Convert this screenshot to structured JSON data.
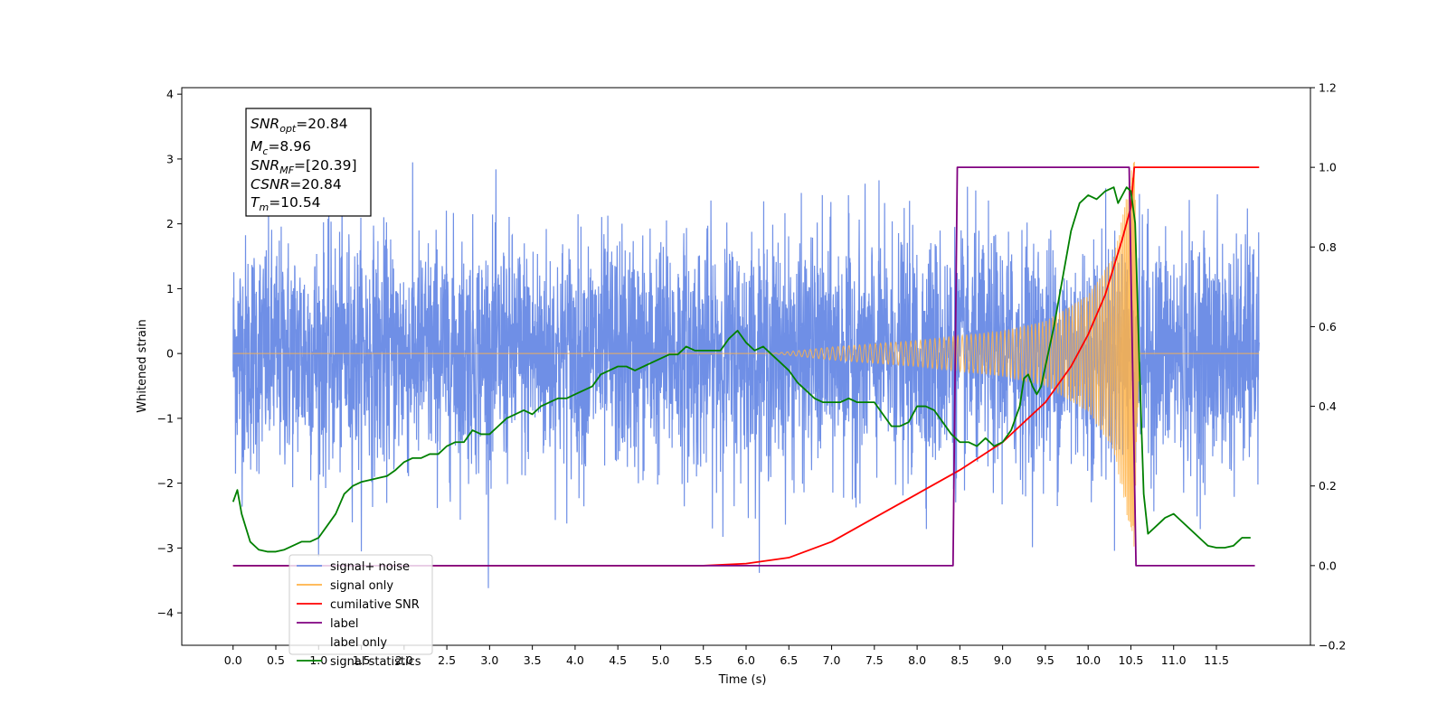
{
  "chart_data": {
    "type": "line",
    "xlabel": "Time (s)",
    "ylabel": "Whitened strain",
    "xlim": [
      -0.6,
      12.6
    ],
    "ylim_left": [
      -4.5,
      4.1
    ],
    "ylim_right": [
      -0.2,
      1.2
    ],
    "x_ticks": [
      "0.0",
      "0.5",
      "1.0",
      "1.5",
      "2.0",
      "2.5",
      "3.0",
      "3.5",
      "4.0",
      "4.5",
      "5.0",
      "5.5",
      "6.0",
      "6.5",
      "7.0",
      "7.5",
      "8.0",
      "8.5",
      "9.0",
      "9.5",
      "10.0",
      "10.5",
      "11.0",
      "11.5"
    ],
    "y_ticks_left": [
      "−4",
      "−3",
      "−2",
      "−1",
      "0",
      "1",
      "2",
      "3",
      "4"
    ],
    "y_ticks_right": [
      "−0.2",
      "0.0",
      "0.2",
      "0.4",
      "0.6",
      "0.8",
      "1.0",
      "1.2"
    ],
    "legend_position": "lower-left",
    "grid": false,
    "series": [
      {
        "name": "signal+ noise",
        "color": "#6f8fe6",
        "axis": "left",
        "style": "dense-noise",
        "x_range": [
          0.0,
          12.0
        ],
        "std": 0.9
      },
      {
        "name": "signal only",
        "color": "#ffb347",
        "axis": "left",
        "style": "chirp",
        "merger_time": 10.54,
        "envelope": {
          "t": [
            6.3,
            7.0,
            8.0,
            9.0,
            9.5,
            10.0,
            10.3,
            10.5,
            10.54,
            10.6
          ],
          "amp": [
            0.0,
            0.1,
            0.2,
            0.35,
            0.5,
            0.9,
            1.5,
            2.8,
            3.0,
            0.0
          ]
        }
      },
      {
        "name": "cumilative SNR",
        "color": "#ff0000",
        "axis": "right",
        "x": [
          0.0,
          5.5,
          6.0,
          6.5,
          7.0,
          7.5,
          8.0,
          8.5,
          9.0,
          9.5,
          9.8,
          10.0,
          10.2,
          10.4,
          10.5,
          10.54,
          12.0
        ],
        "y": [
          0.0,
          0.0,
          0.005,
          0.02,
          0.06,
          0.12,
          0.18,
          0.24,
          0.31,
          0.41,
          0.5,
          0.58,
          0.68,
          0.82,
          0.9,
          1.0,
          1.0
        ]
      },
      {
        "name": "label",
        "color": "#800080",
        "axis": "right",
        "x": [
          0.0,
          8.42,
          8.47,
          10.48,
          10.56,
          11.95
        ],
        "y": [
          0.0,
          0.0,
          1.0,
          1.0,
          0.0,
          0.0
        ]
      },
      {
        "name": "label only",
        "color": "#ffffff",
        "axis": "right",
        "x": [],
        "y": []
      },
      {
        "name": "signal statistics",
        "color": "#008000",
        "axis": "right",
        "x": [
          0.0,
          0.05,
          0.1,
          0.2,
          0.3,
          0.4,
          0.5,
          0.6,
          0.7,
          0.8,
          0.9,
          1.0,
          1.1,
          1.2,
          1.3,
          1.4,
          1.5,
          1.6,
          1.7,
          1.8,
          1.9,
          2.0,
          2.1,
          2.2,
          2.3,
          2.4,
          2.5,
          2.6,
          2.7,
          2.8,
          2.9,
          3.0,
          3.1,
          3.2,
          3.3,
          3.4,
          3.5,
          3.6,
          3.7,
          3.8,
          3.9,
          4.0,
          4.1,
          4.2,
          4.3,
          4.4,
          4.5,
          4.6,
          4.7,
          4.8,
          4.9,
          5.0,
          5.1,
          5.2,
          5.3,
          5.4,
          5.5,
          5.6,
          5.7,
          5.8,
          5.85,
          5.9,
          6.0,
          6.1,
          6.2,
          6.3,
          6.4,
          6.5,
          6.6,
          6.7,
          6.8,
          6.9,
          7.0,
          7.1,
          7.2,
          7.3,
          7.4,
          7.5,
          7.6,
          7.7,
          7.8,
          7.9,
          8.0,
          8.1,
          8.2,
          8.3,
          8.4,
          8.5,
          8.6,
          8.7,
          8.8,
          8.9,
          9.0,
          9.1,
          9.2,
          9.25,
          9.3,
          9.35,
          9.4,
          9.45,
          9.5,
          9.6,
          9.7,
          9.8,
          9.9,
          10.0,
          10.1,
          10.2,
          10.3,
          10.35,
          10.4,
          10.45,
          10.5,
          10.55,
          10.6,
          10.65,
          10.7,
          10.8,
          10.9,
          11.0,
          11.1,
          11.2,
          11.3,
          11.4,
          11.5,
          11.6,
          11.7,
          11.8,
          11.9
        ],
        "y": [
          0.16,
          0.19,
          0.13,
          0.06,
          0.04,
          0.035,
          0.035,
          0.04,
          0.05,
          0.06,
          0.06,
          0.07,
          0.1,
          0.13,
          0.18,
          0.2,
          0.21,
          0.215,
          0.22,
          0.225,
          0.24,
          0.26,
          0.27,
          0.27,
          0.28,
          0.28,
          0.3,
          0.31,
          0.31,
          0.34,
          0.33,
          0.33,
          0.35,
          0.37,
          0.38,
          0.39,
          0.38,
          0.4,
          0.41,
          0.42,
          0.42,
          0.43,
          0.44,
          0.45,
          0.48,
          0.49,
          0.5,
          0.5,
          0.49,
          0.5,
          0.51,
          0.52,
          0.53,
          0.53,
          0.55,
          0.54,
          0.54,
          0.54,
          0.54,
          0.57,
          0.58,
          0.59,
          0.56,
          0.54,
          0.55,
          0.53,
          0.51,
          0.49,
          0.46,
          0.44,
          0.42,
          0.41,
          0.41,
          0.41,
          0.42,
          0.41,
          0.41,
          0.41,
          0.38,
          0.35,
          0.35,
          0.36,
          0.4,
          0.4,
          0.39,
          0.36,
          0.33,
          0.31,
          0.31,
          0.3,
          0.32,
          0.3,
          0.31,
          0.34,
          0.4,
          0.47,
          0.48,
          0.45,
          0.43,
          0.45,
          0.5,
          0.6,
          0.72,
          0.84,
          0.91,
          0.93,
          0.92,
          0.94,
          0.95,
          0.91,
          0.93,
          0.95,
          0.94,
          0.86,
          0.5,
          0.18,
          0.08,
          0.1,
          0.12,
          0.13,
          0.11,
          0.09,
          0.07,
          0.05,
          0.045,
          0.045,
          0.05,
          0.07,
          0.07
        ]
      }
    ]
  },
  "annotation": {
    "snr_opt": {
      "main": "SNR",
      "sub": "opt",
      "value": "=20.84"
    },
    "mc": {
      "main": "M",
      "sub": "c",
      "value": "=8.96"
    },
    "snr_mf": {
      "main": "SNR",
      "sub": "MF",
      "value": "=[20.39]"
    },
    "csnr": {
      "main": "CSNR",
      "value": "=20.84"
    },
    "tm": {
      "main": "T",
      "sub": "m",
      "value": "=10.54"
    }
  }
}
